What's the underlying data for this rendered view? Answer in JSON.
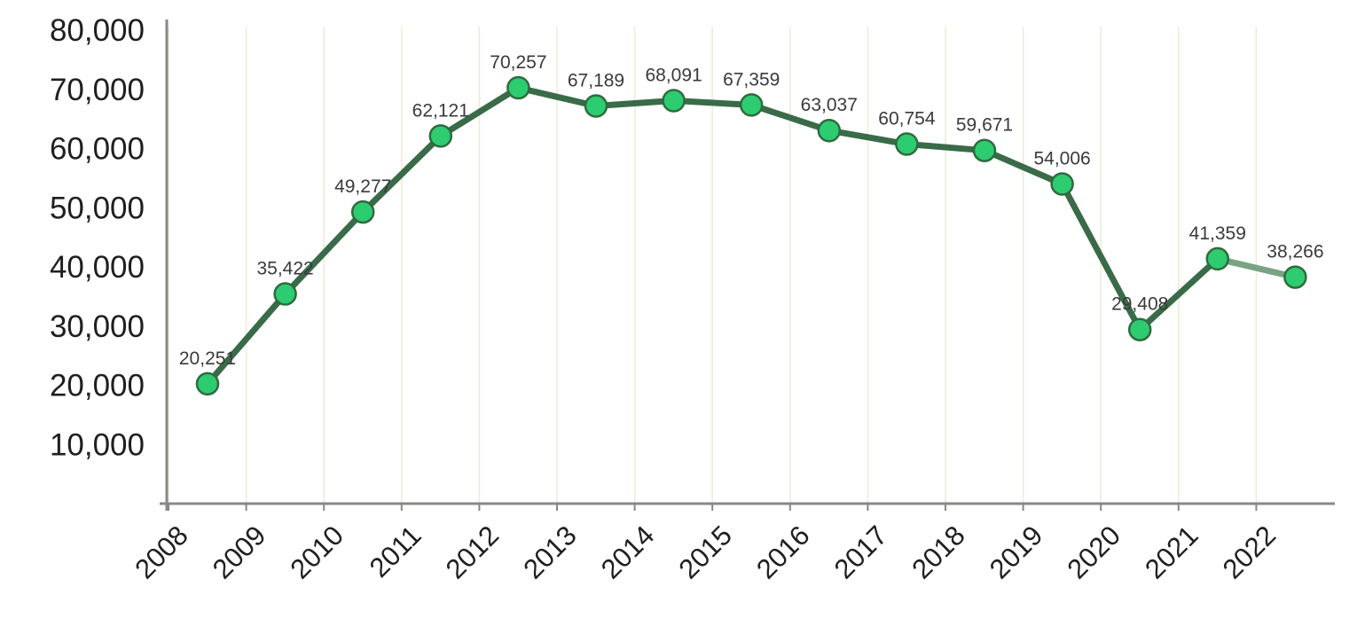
{
  "chart_data": {
    "type": "line",
    "x": [
      "2008",
      "2009",
      "2010",
      "2011",
      "2012",
      "2013",
      "2014",
      "2015",
      "2016",
      "2017",
      "2018",
      "2019",
      "2020",
      "2021",
      "2022"
    ],
    "series": [
      {
        "values": [
          20251,
          35422,
          49277,
          62121,
          70257,
          67189,
          68091,
          67359,
          63037,
          60754,
          59671,
          54006,
          29408,
          41359,
          38266
        ],
        "labels": [
          "20,251",
          "35,422",
          "49,277",
          "62,121",
          "70,257",
          "67,189",
          "68,091",
          "67,359",
          "63,037",
          "60,754",
          "59,671",
          "54,006",
          "29,408",
          "41,359",
          "38,266"
        ]
      }
    ],
    "y_ticks": [
      10000,
      20000,
      30000,
      40000,
      50000,
      60000,
      70000,
      80000
    ],
    "y_tick_labels": [
      "10,000",
      "20,000",
      "30,000",
      "40,000",
      "50,000",
      "60,000",
      "70,000",
      "80,000"
    ],
    "ylim": [
      0,
      80000
    ],
    "title": "",
    "xlabel": "",
    "ylabel": "",
    "grid": "vertical",
    "legend": "none",
    "colors": {
      "line": "#3a6b48",
      "line_last_segment": "#7aa386",
      "marker_fill": "#2ecc71",
      "marker_stroke": "#2e6b3f",
      "axis": "#888888",
      "grid": "#ececd6"
    }
  }
}
